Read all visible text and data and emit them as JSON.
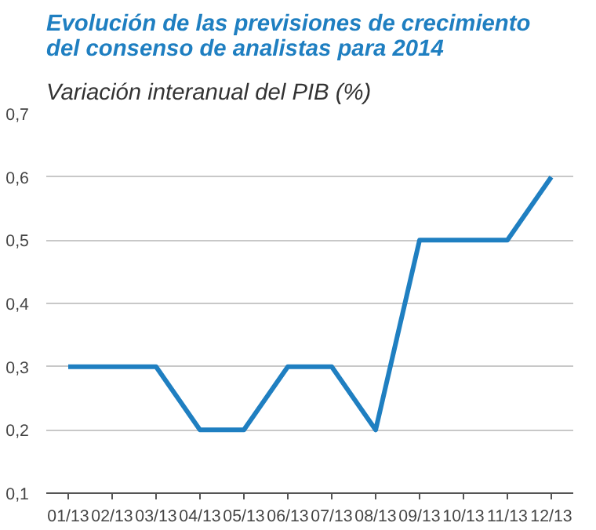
{
  "chart_data": {
    "type": "line",
    "title": "Evolución de las previsiones de crecimiento del consenso de analistas para 2014",
    "subtitle": "Variación interanual del PIB (%)",
    "categories": [
      "01/13",
      "02/13",
      "03/13",
      "04/13",
      "05/13",
      "06/13",
      "07/13",
      "08/13",
      "09/13",
      "10/13",
      "11/13",
      "12/13"
    ],
    "series": [
      {
        "color": "#1f7fc1",
        "values": [
          0.3,
          0.3,
          0.3,
          0.2,
          0.2,
          0.3,
          0.3,
          0.2,
          0.5,
          0.5,
          0.5,
          0.6
        ]
      }
    ],
    "ylim": [
      0.1,
      0.7
    ],
    "yticks": [
      {
        "value": 0.1,
        "label": "0,1"
      },
      {
        "value": 0.2,
        "label": "0,2"
      },
      {
        "value": 0.3,
        "label": "0,3"
      },
      {
        "value": 0.4,
        "label": "0,4"
      },
      {
        "value": 0.5,
        "label": "0,5"
      },
      {
        "value": 0.6,
        "label": "0,6"
      },
      {
        "value": 0.7,
        "label": "0,7"
      }
    ],
    "grid": "y",
    "marker": "none",
    "line_style": "solid"
  }
}
